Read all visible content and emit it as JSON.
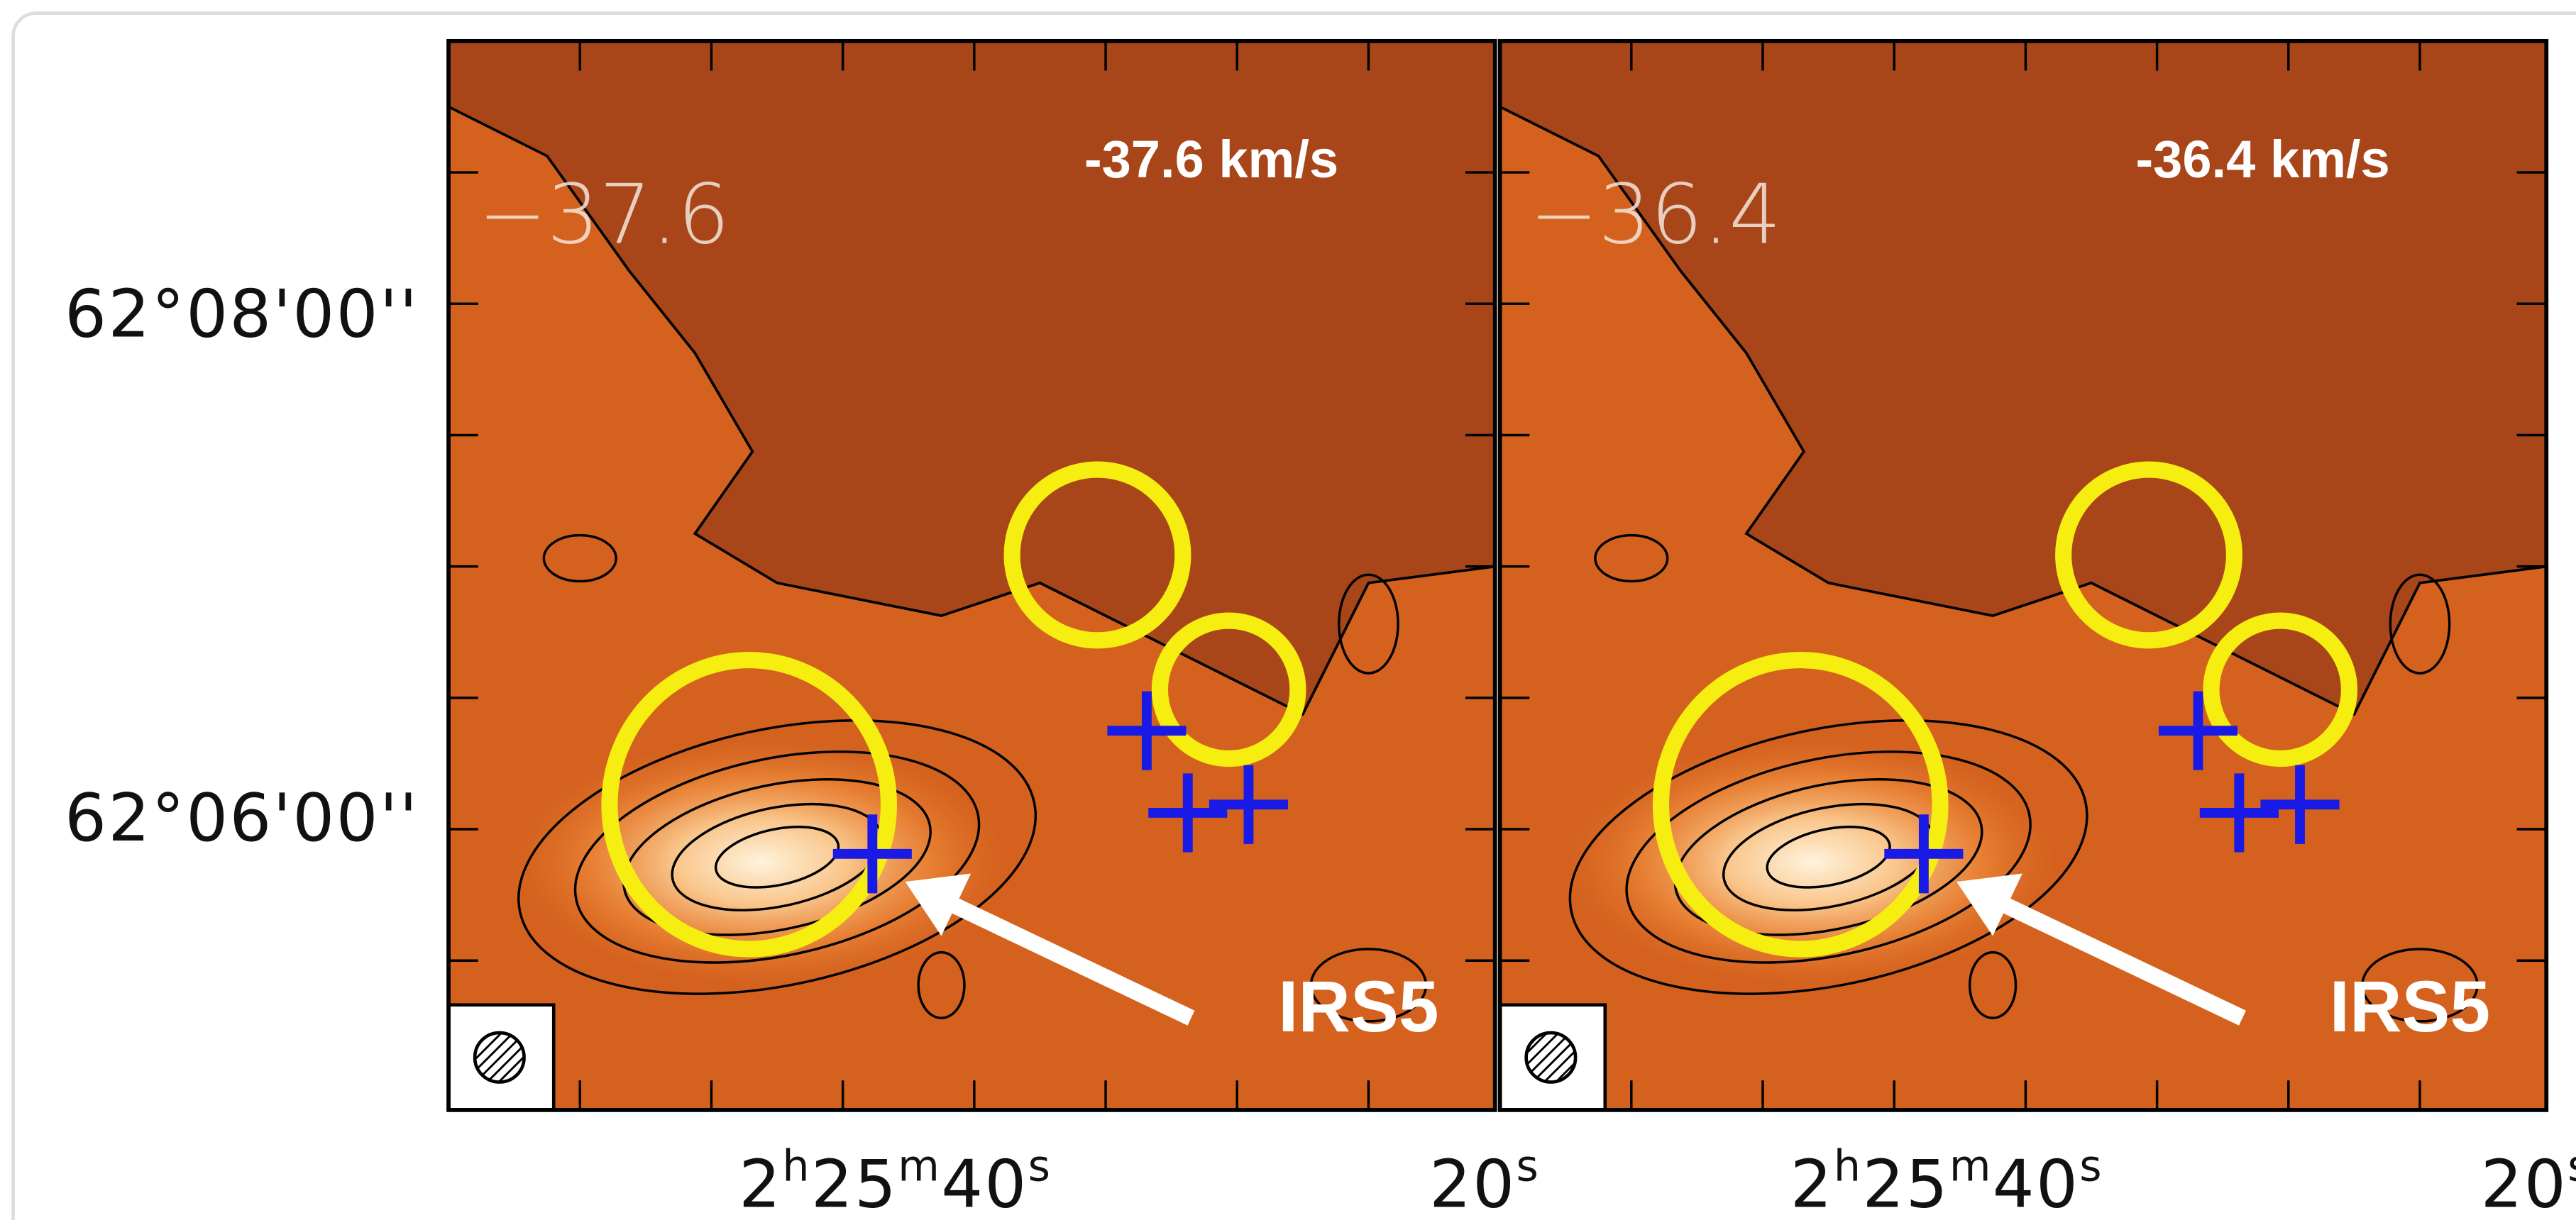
{
  "y_axis": {
    "labels": [
      "62°08'00''",
      "62°06'00''"
    ]
  },
  "panels": [
    {
      "channel": "−37.6",
      "velocity": "-37.6 km/s",
      "source": "IRS5",
      "ra_label": [
        "2",
        "h",
        "25",
        "m",
        "40",
        "s"
      ],
      "ra_label_right": [
        "20",
        "s"
      ]
    },
    {
      "channel": "−36.4",
      "velocity": "-36.4 km/s",
      "source": "IRS5",
      "ra_label": [
        "2",
        "h",
        "25",
        "m",
        "40",
        "s"
      ],
      "ra_label_right": [
        "20",
        "s"
      ]
    }
  ]
}
